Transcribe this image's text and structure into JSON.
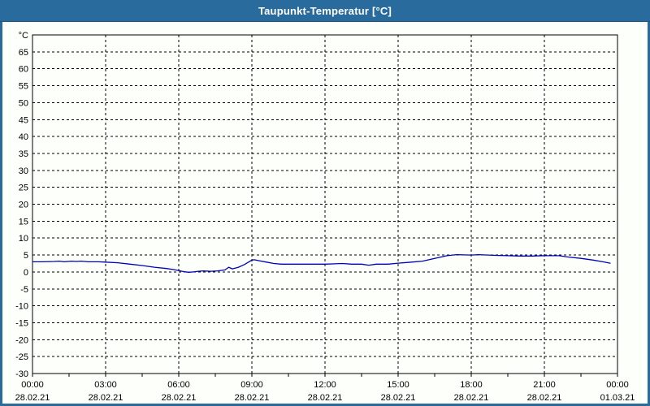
{
  "window": {
    "title": "Taupunkt-Temperatur [°C]"
  },
  "colors": {
    "titlebar_bg": "#2A6B9E",
    "titlebar_text": "#FFFFFF",
    "window_border": "#2A6B9E",
    "chart_bg": "#FDFFFA",
    "grid": "#000000",
    "frame": "#000000",
    "series_line": "#0000B8",
    "label_text": "#000000"
  },
  "chart_data": {
    "type": "line",
    "title": "Taupunkt-Temperatur [°C]",
    "ylabel": "°C",
    "ylim": [
      -30,
      70
    ],
    "ytick_step": 5,
    "grid": "dashed",
    "legend": "none",
    "xlim_hours": [
      0,
      24
    ],
    "x_major_step_hours": 3,
    "x_minor_tick_step_hours": 1.5,
    "y_ticks": [
      {
        "v": 70,
        "label": "°C"
      },
      {
        "v": 65,
        "label": "65"
      },
      {
        "v": 60,
        "label": "60"
      },
      {
        "v": 55,
        "label": "55"
      },
      {
        "v": 50,
        "label": "50"
      },
      {
        "v": 45,
        "label": "45"
      },
      {
        "v": 40,
        "label": "40"
      },
      {
        "v": 35,
        "label": "35"
      },
      {
        "v": 30,
        "label": "30"
      },
      {
        "v": 25,
        "label": "25"
      },
      {
        "v": 20,
        "label": "20"
      },
      {
        "v": 15,
        "label": "15"
      },
      {
        "v": 10,
        "label": "10"
      },
      {
        "v": 5,
        "label": "5"
      },
      {
        "v": 0,
        "label": "0"
      },
      {
        "v": -5,
        "label": "-5"
      },
      {
        "v": -10,
        "label": "-10"
      },
      {
        "v": -15,
        "label": "-15"
      },
      {
        "v": -20,
        "label": "-20"
      },
      {
        "v": -25,
        "label": "-25"
      },
      {
        "v": -30,
        "label": "-30"
      }
    ],
    "x_ticks": [
      {
        "hour": 0,
        "time": "00:00",
        "date": "28.02.21"
      },
      {
        "hour": 3,
        "time": "03:00",
        "date": "28.02.21"
      },
      {
        "hour": 6,
        "time": "06:00",
        "date": "28.02.21"
      },
      {
        "hour": 9,
        "time": "09:00",
        "date": "28.02.21"
      },
      {
        "hour": 12,
        "time": "12:00",
        "date": "28.02.21"
      },
      {
        "hour": 15,
        "time": "15:00",
        "date": "28.02.21"
      },
      {
        "hour": 18,
        "time": "18:00",
        "date": "28.02.21"
      },
      {
        "hour": 21,
        "time": "21:00",
        "date": "28.02.21"
      },
      {
        "hour": 24,
        "time": "00:00",
        "date": "01.03.21"
      }
    ],
    "series": [
      {
        "name": "Taupunkt-Temperatur",
        "unit": "°C",
        "color": "#0000B8",
        "points": [
          [
            0.0,
            3.0
          ],
          [
            0.4,
            3.0
          ],
          [
            0.9,
            3.1
          ],
          [
            1.1,
            3.2
          ],
          [
            1.3,
            3.0
          ],
          [
            1.6,
            3.2
          ],
          [
            1.8,
            3.1
          ],
          [
            2.0,
            3.2
          ],
          [
            2.3,
            3.0
          ],
          [
            2.7,
            3.0
          ],
          [
            3.0,
            2.9
          ],
          [
            3.5,
            2.7
          ],
          [
            4.0,
            2.3
          ],
          [
            4.5,
            1.9
          ],
          [
            5.0,
            1.4
          ],
          [
            5.5,
            1.0
          ],
          [
            5.8,
            0.7
          ],
          [
            6.0,
            0.4
          ],
          [
            6.2,
            0.1
          ],
          [
            6.4,
            -0.1
          ],
          [
            6.6,
            0.0
          ],
          [
            6.8,
            0.2
          ],
          [
            7.0,
            0.3
          ],
          [
            7.3,
            0.2
          ],
          [
            7.6,
            0.3
          ],
          [
            7.9,
            0.6
          ],
          [
            8.05,
            1.4
          ],
          [
            8.2,
            0.9
          ],
          [
            8.45,
            1.4
          ],
          [
            8.7,
            2.2
          ],
          [
            9.0,
            3.5
          ],
          [
            9.1,
            3.6
          ],
          [
            9.3,
            3.3
          ],
          [
            9.6,
            2.9
          ],
          [
            9.9,
            2.5
          ],
          [
            10.2,
            2.3
          ],
          [
            10.7,
            2.3
          ],
          [
            11.2,
            2.3
          ],
          [
            11.7,
            2.3
          ],
          [
            12.0,
            2.3
          ],
          [
            12.4,
            2.4
          ],
          [
            12.7,
            2.5
          ],
          [
            13.1,
            2.3
          ],
          [
            13.5,
            2.3
          ],
          [
            13.8,
            2.0
          ],
          [
            14.1,
            2.3
          ],
          [
            14.6,
            2.3
          ],
          [
            15.0,
            2.6
          ],
          [
            15.4,
            2.8
          ],
          [
            16.0,
            3.2
          ],
          [
            16.5,
            4.0
          ],
          [
            17.0,
            4.8
          ],
          [
            17.4,
            5.1
          ],
          [
            18.0,
            5.0
          ],
          [
            18.3,
            5.1
          ],
          [
            18.7,
            5.0
          ],
          [
            19.0,
            4.9
          ],
          [
            19.5,
            4.8
          ],
          [
            20.0,
            4.7
          ],
          [
            20.5,
            4.7
          ],
          [
            21.0,
            4.8
          ],
          [
            21.6,
            4.8
          ],
          [
            22.0,
            4.4
          ],
          [
            22.5,
            4.0
          ],
          [
            23.0,
            3.5
          ],
          [
            23.4,
            3.0
          ],
          [
            23.7,
            2.6
          ]
        ]
      }
    ]
  }
}
